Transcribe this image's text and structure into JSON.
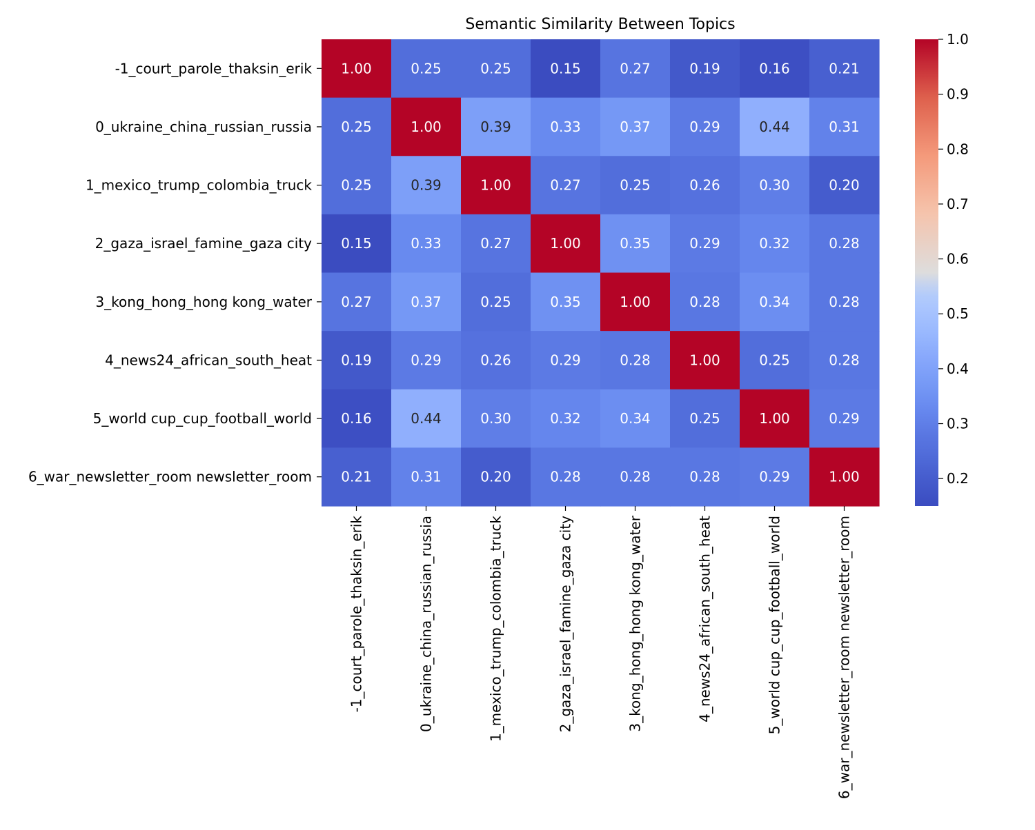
{
  "chart_data": {
    "type": "heatmap",
    "title": "Semantic Similarity Between Topics",
    "xlabel": "",
    "ylabel": "",
    "row_labels": [
      "-1_court_parole_thaksin_erik",
      "0_ukraine_china_russian_russia",
      "1_mexico_trump_colombia_truck",
      "2_gaza_israel_famine_gaza city",
      "3_kong_hong_hong kong_water",
      "4_news24_african_south_heat",
      "5_world cup_cup_football_world",
      "6_war_newsletter_room newsletter_room"
    ],
    "col_labels": [
      "-1_court_parole_thaksin_erik",
      "0_ukraine_china_russian_russia",
      "1_mexico_trump_colombia_truck",
      "2_gaza_israel_famine_gaza city",
      "3_kong_hong_hong kong_water",
      "4_news24_african_south_heat",
      "5_world cup_cup_football_world",
      "6_war_newsletter_room newsletter_room"
    ],
    "values": [
      [
        1.0,
        0.25,
        0.25,
        0.15,
        0.27,
        0.19,
        0.16,
        0.21
      ],
      [
        0.25,
        1.0,
        0.39,
        0.33,
        0.37,
        0.29,
        0.44,
        0.31
      ],
      [
        0.25,
        0.39,
        1.0,
        0.27,
        0.25,
        0.26,
        0.3,
        0.2
      ],
      [
        0.15,
        0.33,
        0.27,
        1.0,
        0.35,
        0.29,
        0.32,
        0.28
      ],
      [
        0.27,
        0.37,
        0.25,
        0.35,
        1.0,
        0.28,
        0.34,
        0.28
      ],
      [
        0.19,
        0.29,
        0.26,
        0.29,
        0.28,
        1.0,
        0.25,
        0.28
      ],
      [
        0.16,
        0.44,
        0.3,
        0.32,
        0.34,
        0.25,
        1.0,
        0.29
      ],
      [
        0.21,
        0.31,
        0.2,
        0.28,
        0.28,
        0.28,
        0.29,
        1.0
      ]
    ],
    "value_format": "0.00",
    "colormap": "coolwarm",
    "vmin": 0.15,
    "vmax": 1.0,
    "colorbar_ticks": [
      "0.2",
      "0.3",
      "0.4",
      "0.5",
      "0.6",
      "0.7",
      "0.8",
      "0.9",
      "1.0"
    ],
    "colorbar_tick_values": [
      0.2,
      0.3,
      0.4,
      0.5,
      0.6,
      0.7,
      0.8,
      0.9,
      1.0
    ],
    "x_tick_rotation": "vertical",
    "grid": false
  }
}
